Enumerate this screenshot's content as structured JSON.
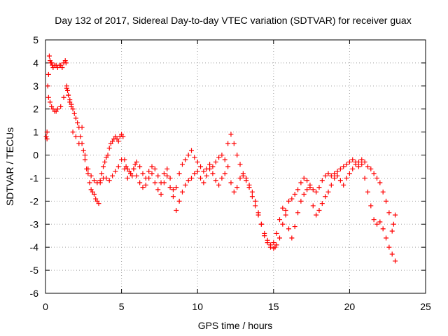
{
  "chart_data": {
    "type": "scatter",
    "title": "Day 132 of 2017, Sidereal Day-to-day VTEC variation (SDTVAR) for receiver guax",
    "xlabel": "GPS time / hours",
    "ylabel": "SDTVAR / TECUs",
    "xlim": [
      0,
      25
    ],
    "ylim": [
      -6,
      5
    ],
    "xticks": [
      0,
      5,
      10,
      15,
      20,
      25
    ],
    "yticks": [
      -6,
      -5,
      -4,
      -3,
      -2,
      -1,
      0,
      1,
      2,
      3,
      4,
      5
    ],
    "grid": true,
    "marker": "+",
    "series_color": "#ff0000",
    "series": [
      {
        "name": "SDTVAR",
        "x": [
          0.05,
          0.1,
          0.15,
          0.2,
          0.25,
          0.3,
          0.35,
          0.4,
          0.45,
          0.5,
          0.6,
          0.7,
          0.8,
          0.9,
          1.0,
          1.1,
          1.2,
          1.3,
          1.35,
          1.4,
          1.45,
          1.5,
          1.6,
          1.7,
          1.8,
          1.9,
          2.0,
          2.1,
          2.2,
          2.3,
          2.4,
          2.5,
          2.6,
          2.7,
          2.8,
          2.9,
          3.0,
          3.1,
          3.2,
          3.3,
          3.4,
          3.5,
          3.6,
          3.7,
          3.8,
          3.9,
          4.0,
          4.1,
          4.2,
          4.3,
          4.4,
          4.5,
          4.6,
          4.7,
          4.8,
          4.9,
          5.0,
          5.1,
          5.2,
          5.3,
          5.4,
          5.5,
          5.6,
          5.7,
          5.8,
          5.9,
          6.0,
          6.2,
          6.4,
          6.6,
          6.8,
          7.0,
          7.2,
          7.4,
          7.6,
          7.8,
          8.0,
          8.2,
          8.4,
          8.6,
          8.8,
          9.0,
          9.2,
          9.4,
          9.6,
          9.8,
          10.0,
          10.2,
          10.4,
          10.6,
          10.8,
          11.0,
          11.2,
          11.4,
          11.6,
          11.8,
          12.0,
          12.2,
          12.4,
          12.6,
          12.8,
          13.0,
          13.2,
          13.4,
          13.6,
          13.8,
          14.0,
          14.2,
          14.4,
          14.6,
          14.8,
          15.0,
          15.1,
          15.2,
          15.4,
          15.6,
          15.8,
          16.0,
          16.2,
          16.4,
          16.6,
          16.8,
          17.0,
          17.2,
          17.4,
          17.6,
          17.8,
          18.0,
          18.2,
          18.4,
          18.6,
          18.8,
          19.0,
          19.2,
          19.4,
          19.6,
          19.8,
          20.0,
          20.2,
          20.4,
          20.6,
          20.8,
          21.0,
          21.2,
          21.4,
          21.6,
          21.8,
          22.0,
          22.2,
          22.4,
          22.6,
          22.8,
          22.9,
          23.0,
          0.1,
          0.2,
          0.3,
          0.4,
          0.5,
          0.6,
          0.7,
          0.8,
          1.0,
          1.2,
          1.4,
          1.5,
          1.6,
          1.7,
          1.8,
          2.0,
          2.2,
          2.4,
          2.6,
          2.8,
          3.0,
          3.2,
          3.4,
          3.6,
          3.8,
          4.0,
          4.2,
          4.4,
          4.6,
          4.8,
          5.0,
          5.2,
          5.4,
          5.6,
          5.8,
          6.0,
          6.2,
          6.4,
          6.6,
          6.8,
          7.0,
          7.2,
          7.4,
          7.6,
          7.8,
          8.0,
          8.2,
          8.4,
          8.6,
          8.8,
          9.0,
          9.2,
          9.4,
          9.6,
          9.8,
          10.0,
          10.2,
          10.4,
          10.6,
          10.8,
          11.0,
          11.2,
          11.4,
          11.6,
          11.8,
          12.0,
          12.2,
          12.4,
          12.6,
          12.8,
          13.0,
          13.2,
          13.4,
          13.6,
          13.8,
          14.0,
          14.2,
          14.4,
          14.6,
          14.8,
          15.0,
          15.2,
          15.4,
          15.6,
          15.8,
          16.0,
          16.2,
          16.4,
          16.6,
          16.8,
          17.0,
          17.2,
          17.4,
          17.6,
          17.8,
          18.0,
          18.2,
          18.4,
          18.6,
          18.8,
          19.0,
          19.2,
          19.4,
          19.6,
          19.8,
          20.0,
          20.2,
          20.4,
          20.6,
          20.8,
          21.0,
          21.2,
          21.4,
          21.6,
          21.8,
          22.0,
          22.2,
          22.4,
          22.6,
          22.8,
          23.0
        ],
        "y": [
          0.8,
          1.0,
          3.0,
          3.5,
          4.3,
          4.1,
          4.0,
          4.0,
          3.9,
          3.8,
          3.9,
          3.9,
          3.8,
          3.9,
          3.9,
          3.8,
          4.0,
          4.1,
          4.0,
          3.0,
          2.8,
          2.6,
          2.4,
          2.2,
          2.0,
          1.8,
          1.6,
          1.4,
          1.2,
          0.8,
          0.5,
          0.2,
          -0.2,
          -0.6,
          -0.8,
          -1.2,
          -1.5,
          -1.6,
          -1.7,
          -1.9,
          -2.0,
          -2.1,
          -1.2,
          -0.8,
          -0.5,
          -0.3,
          -0.1,
          0.0,
          0.3,
          0.5,
          0.6,
          0.7,
          0.8,
          0.7,
          0.6,
          0.8,
          0.9,
          0.8,
          -0.2,
          -0.5,
          -0.6,
          -0.7,
          -0.8,
          -0.9,
          -0.6,
          -0.4,
          -0.3,
          -0.5,
          -0.8,
          -1.0,
          -0.7,
          -0.5,
          -0.6,
          -0.9,
          -1.2,
          -0.8,
          -0.6,
          -1.0,
          -1.5,
          -1.4,
          -0.8,
          -0.4,
          -0.2,
          0.0,
          0.2,
          -0.1,
          -0.3,
          -0.5,
          -0.7,
          -0.6,
          -0.4,
          -0.5,
          -0.3,
          -0.1,
          0.0,
          -0.2,
          0.5,
          0.9,
          0.5,
          0.0,
          -0.4,
          -0.8,
          -1.0,
          -1.3,
          -1.6,
          -2.0,
          -2.5,
          -3.0,
          -3.5,
          -3.8,
          -4.0,
          -4.05,
          -4.0,
          -3.9,
          -3.6,
          -3.0,
          -2.4,
          -2.0,
          -1.9,
          -1.7,
          -1.5,
          -1.2,
          -1.0,
          -1.1,
          -1.3,
          -1.5,
          -1.6,
          -1.4,
          -1.1,
          -0.9,
          -0.8,
          -0.9,
          -0.8,
          -0.7,
          -0.6,
          -0.5,
          -0.4,
          -0.3,
          -0.2,
          -0.3,
          -0.5,
          -0.4,
          -0.3,
          -0.5,
          -0.6,
          -0.8,
          -1.0,
          -1.2,
          -1.6,
          -2.0,
          -2.5,
          -3.3,
          -3.0,
          -2.6,
          0.7,
          2.5,
          2.3,
          2.1,
          2.0,
          1.9,
          1.9,
          2.0,
          2.1,
          2.5,
          2.9,
          2.6,
          2.3,
          2.1,
          1.0,
          0.8,
          0.5,
          1.2,
          0.0,
          -0.6,
          -0.9,
          -1.1,
          -1.2,
          -1.1,
          -1.0,
          -1.0,
          -1.1,
          -0.9,
          -0.7,
          -0.5,
          -0.2,
          -0.6,
          -1.0,
          -0.8,
          -0.6,
          -0.9,
          -1.2,
          -1.4,
          -1.3,
          -1.0,
          -0.8,
          -1.2,
          -1.5,
          -1.7,
          -1.2,
          -0.9,
          -1.4,
          -1.8,
          -2.4,
          -2.0,
          -1.6,
          -1.3,
          -1.1,
          -1.0,
          -0.8,
          -0.7,
          -1.0,
          -1.2,
          -0.9,
          -0.6,
          -0.8,
          -1.1,
          -1.3,
          -1.0,
          -0.8,
          -0.5,
          -1.2,
          -1.6,
          -1.4,
          -1.0,
          -0.9,
          -1.1,
          -1.4,
          -1.8,
          -2.2,
          -2.6,
          -3.0,
          -3.4,
          -3.7,
          -3.9,
          -3.8,
          -3.4,
          -2.8,
          -2.3,
          -2.6,
          -3.2,
          -3.6,
          -3.1,
          -2.5,
          -2.0,
          -1.7,
          -1.5,
          -1.4,
          -2.2,
          -2.6,
          -2.4,
          -2.1,
          -1.8,
          -1.6,
          -1.3,
          -1.0,
          -0.9,
          -1.1,
          -1.3,
          -1.0,
          -0.8,
          -0.6,
          -0.4,
          -0.3,
          -0.2,
          -1.0,
          -1.6,
          -2.2,
          -2.8,
          -3.0,
          -2.9,
          -3.2,
          -3.6,
          -4.0,
          -4.3,
          -4.6
        ]
      }
    ]
  }
}
